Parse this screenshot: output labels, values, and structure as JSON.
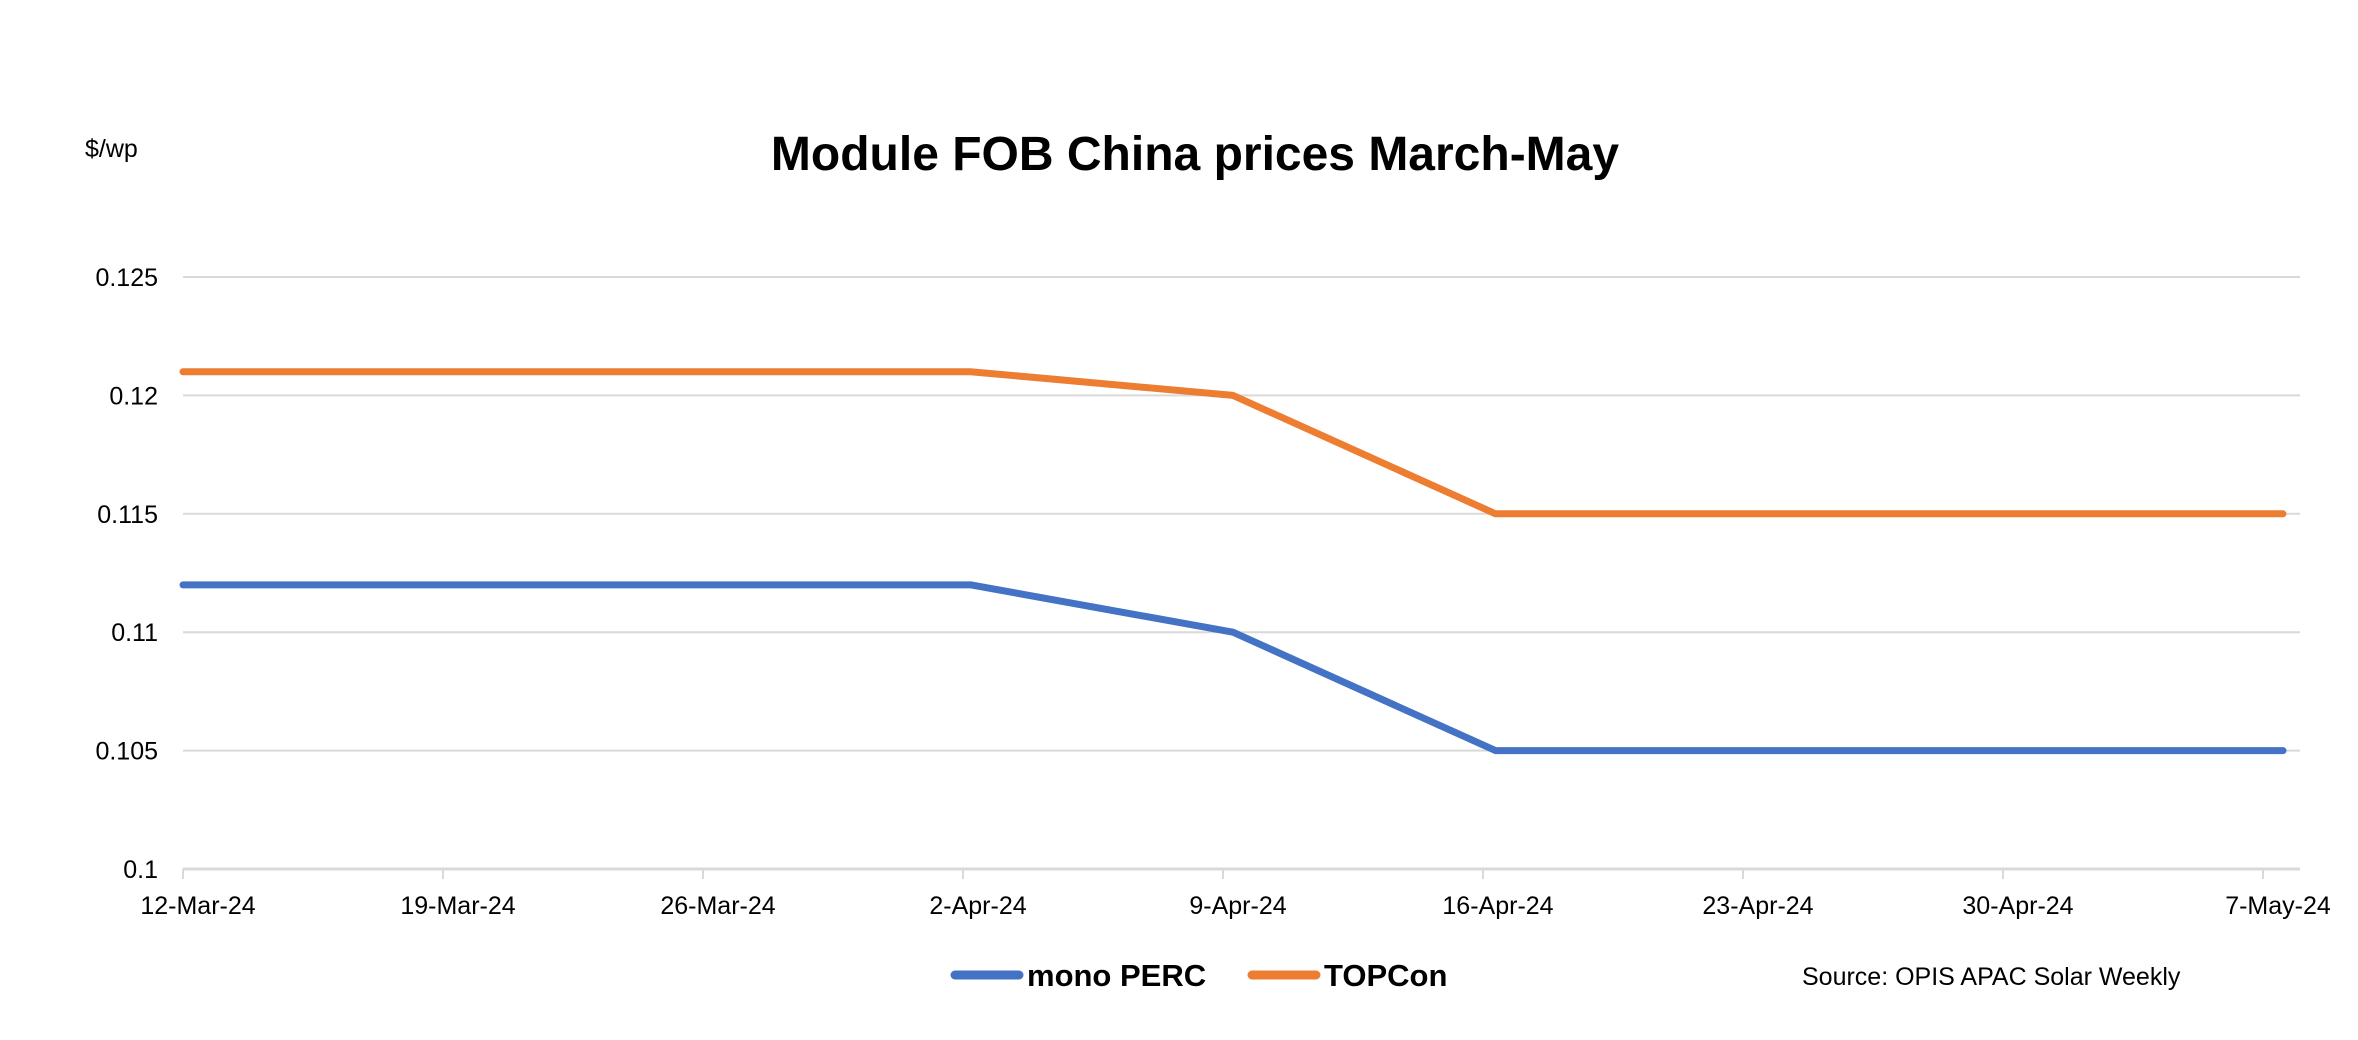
{
  "chart_data": {
    "type": "line",
    "title": "Module FOB China prices March-May",
    "ylabel": "$/wp",
    "xlabel": "",
    "ylim": [
      0.1,
      0.125
    ],
    "yticks": [
      "0.1",
      "0.105",
      "0.11",
      "0.115",
      "0.12",
      "0.125"
    ],
    "x": [
      "12-Mar-24",
      "19-Mar-24",
      "26-Mar-24",
      "2-Apr-24",
      "9-Apr-24",
      "16-Apr-24",
      "23-Apr-24",
      "30-Apr-24",
      "7-May-24"
    ],
    "grid": true,
    "legend_position": "bottom",
    "series": [
      {
        "name": "mono PERC",
        "color": "#4472C4",
        "values": [
          0.112,
          0.112,
          0.112,
          0.112,
          0.11,
          0.105,
          0.105,
          0.105,
          0.105
        ]
      },
      {
        "name": "TOPCon",
        "color": "#ED7D31",
        "values": [
          0.121,
          0.121,
          0.121,
          0.121,
          0.12,
          0.115,
          0.115,
          0.115,
          0.115
        ]
      }
    ],
    "source": "Source: OPIS APAC Solar Weekly"
  }
}
